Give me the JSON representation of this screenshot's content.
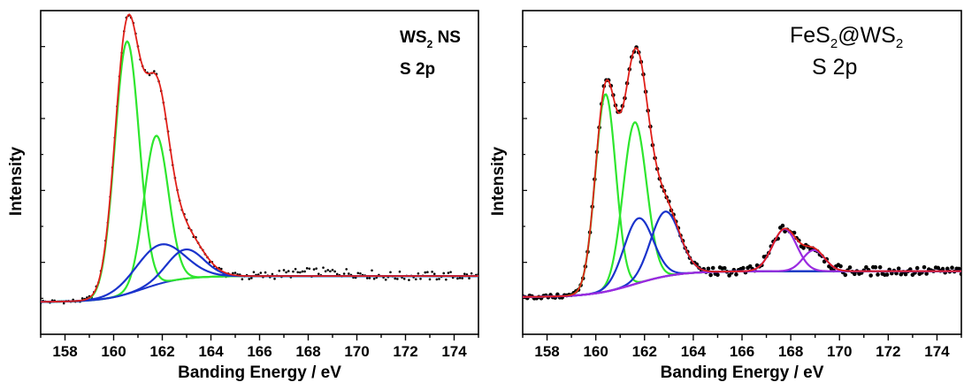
{
  "chart_data": [
    {
      "type": "line",
      "xlabel": "Banding Energy / eV",
      "ylabel": "Intensity",
      "xlim": [
        157,
        175
      ],
      "ylim": [
        0,
        1.0
      ],
      "xticks": [
        158,
        160,
        162,
        164,
        166,
        168,
        170,
        172,
        174
      ],
      "y_tick_labels": false,
      "grid": false,
      "annotations": [
        {
          "name": "sample",
          "main": "WS",
          "sub": "2",
          "suffix": " NS"
        },
        {
          "name": "orbital",
          "text": "S 2p"
        }
      ],
      "background": {
        "x0": 157,
        "x1": 175,
        "base": 0.1,
        "step": 0.08,
        "center": 161.2,
        "width": 0.8
      },
      "components": [
        {
          "color": "#2ee62e",
          "center": 160.55,
          "amplitude": 0.78,
          "sigma": 0.5
        },
        {
          "color": "#2ee62e",
          "center": 161.75,
          "amplitude": 0.46,
          "sigma": 0.5
        },
        {
          "color": "#1a33cc",
          "center": 161.9,
          "amplitude": 0.12,
          "sigma": 1.0
        },
        {
          "color": "#1a33cc",
          "center": 162.95,
          "amplitude": 0.09,
          "sigma": 0.75
        }
      ],
      "fit_color": "#e0201a",
      "data_points_color": "#000000"
    },
    {
      "type": "line",
      "xlabel": "Banding Energy / eV",
      "ylabel": "Intensity",
      "xlim": [
        157,
        175
      ],
      "ylim": [
        0,
        1.0
      ],
      "xticks": [
        158,
        160,
        162,
        164,
        166,
        168,
        170,
        172,
        174
      ],
      "y_tick_labels": false,
      "grid": false,
      "annotations": [
        {
          "name": "sample",
          "main": "FeS",
          "sub": "2",
          "mid": "@WS",
          "sub2": "2"
        },
        {
          "name": "orbital",
          "text": "S 2p"
        }
      ],
      "background": {
        "x0": 157,
        "x1": 175,
        "base": 0.115,
        "step": 0.08,
        "center": 161.6,
        "width": 0.9
      },
      "components": [
        {
          "color": "#2ee62e",
          "center": 160.4,
          "amplitude": 0.61,
          "sigma": 0.42
        },
        {
          "color": "#2ee62e",
          "center": 161.6,
          "amplitude": 0.5,
          "sigma": 0.48
        },
        {
          "color": "#1a33cc",
          "center": 161.75,
          "amplitude": 0.2,
          "sigma": 0.6
        },
        {
          "color": "#1a33cc",
          "center": 162.85,
          "amplitude": 0.2,
          "sigma": 0.6
        },
        {
          "color": "#9a2be0",
          "center": 167.75,
          "amplitude": 0.13,
          "sigma": 0.5
        },
        {
          "color": "#9a2be0",
          "center": 168.95,
          "amplitude": 0.065,
          "sigma": 0.45
        }
      ],
      "fit_color": "#e0201a",
      "data_points_color": "#000000"
    }
  ]
}
